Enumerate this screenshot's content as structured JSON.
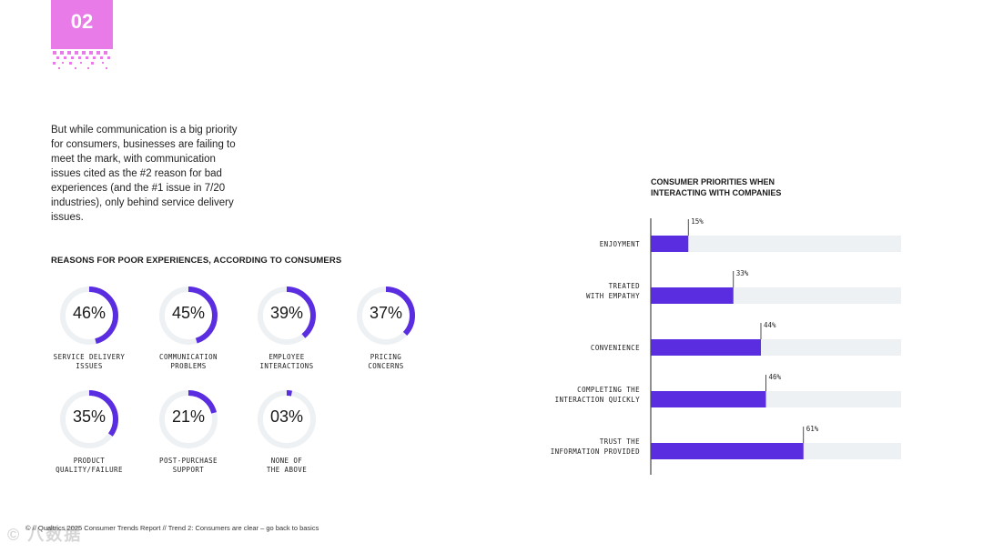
{
  "section_number": "02",
  "intro_text": "But while communication is a big priority for consumers, businesses are failing to meet the mark, with communication issues cited as the #2 reason for bad experiences (and the #1 issue in 7/20 industries), only behind service delivery issues.",
  "donut_section_title": "REASONS FOR POOR EXPERIENCES, ACCORDING TO CONSUMERS",
  "donuts": [
    {
      "pct_label": "46%",
      "value": 46,
      "label": "SERVICE DELIVERY\nISSUES"
    },
    {
      "pct_label": "45%",
      "value": 45,
      "label": "COMMUNICATION\nPROBLEMS"
    },
    {
      "pct_label": "39%",
      "value": 39,
      "label": "EMPLOYEE\nINTERACTIONS"
    },
    {
      "pct_label": "37%",
      "value": 37,
      "label": "PRICING\nCONCERNS"
    },
    {
      "pct_label": "35%",
      "value": 35,
      "label": "PRODUCT\nQUALITY/FAILURE"
    },
    {
      "pct_label": "21%",
      "value": 21,
      "label": "POST-PURCHASE\nSUPPORT"
    },
    {
      "pct_label": "03%",
      "value": 3,
      "label": "NONE OF\nTHE ABOVE"
    }
  ],
  "chart_data": {
    "type": "bar",
    "orientation": "horizontal",
    "title": "CONSUMER PRIORITIES WHEN\nINTERACTING WITH COMPANIES",
    "categories": [
      "ENJOYMENT",
      "TREATED\nWITH EMPATHY",
      "CONVENIENCE",
      "COMPLETING THE\nINTERACTION QUICKLY",
      "TRUST THE\nINFORMATION PROVIDED"
    ],
    "values": [
      15,
      33,
      44,
      46,
      61
    ],
    "value_labels": [
      "15%",
      "33%",
      "44%",
      "46%",
      "61%"
    ],
    "xlim": [
      0,
      100
    ],
    "xlabel": "",
    "ylabel": ""
  },
  "footer": "© // Qualtrics 2025 Consumer Trends Report  //  Trend 2: Consumers are clear – go back to basics",
  "colors": {
    "accent": "#5a2ee0",
    "pink": "#e97be8",
    "track": "#eef1f4",
    "ring_track": "#eef1f4"
  }
}
